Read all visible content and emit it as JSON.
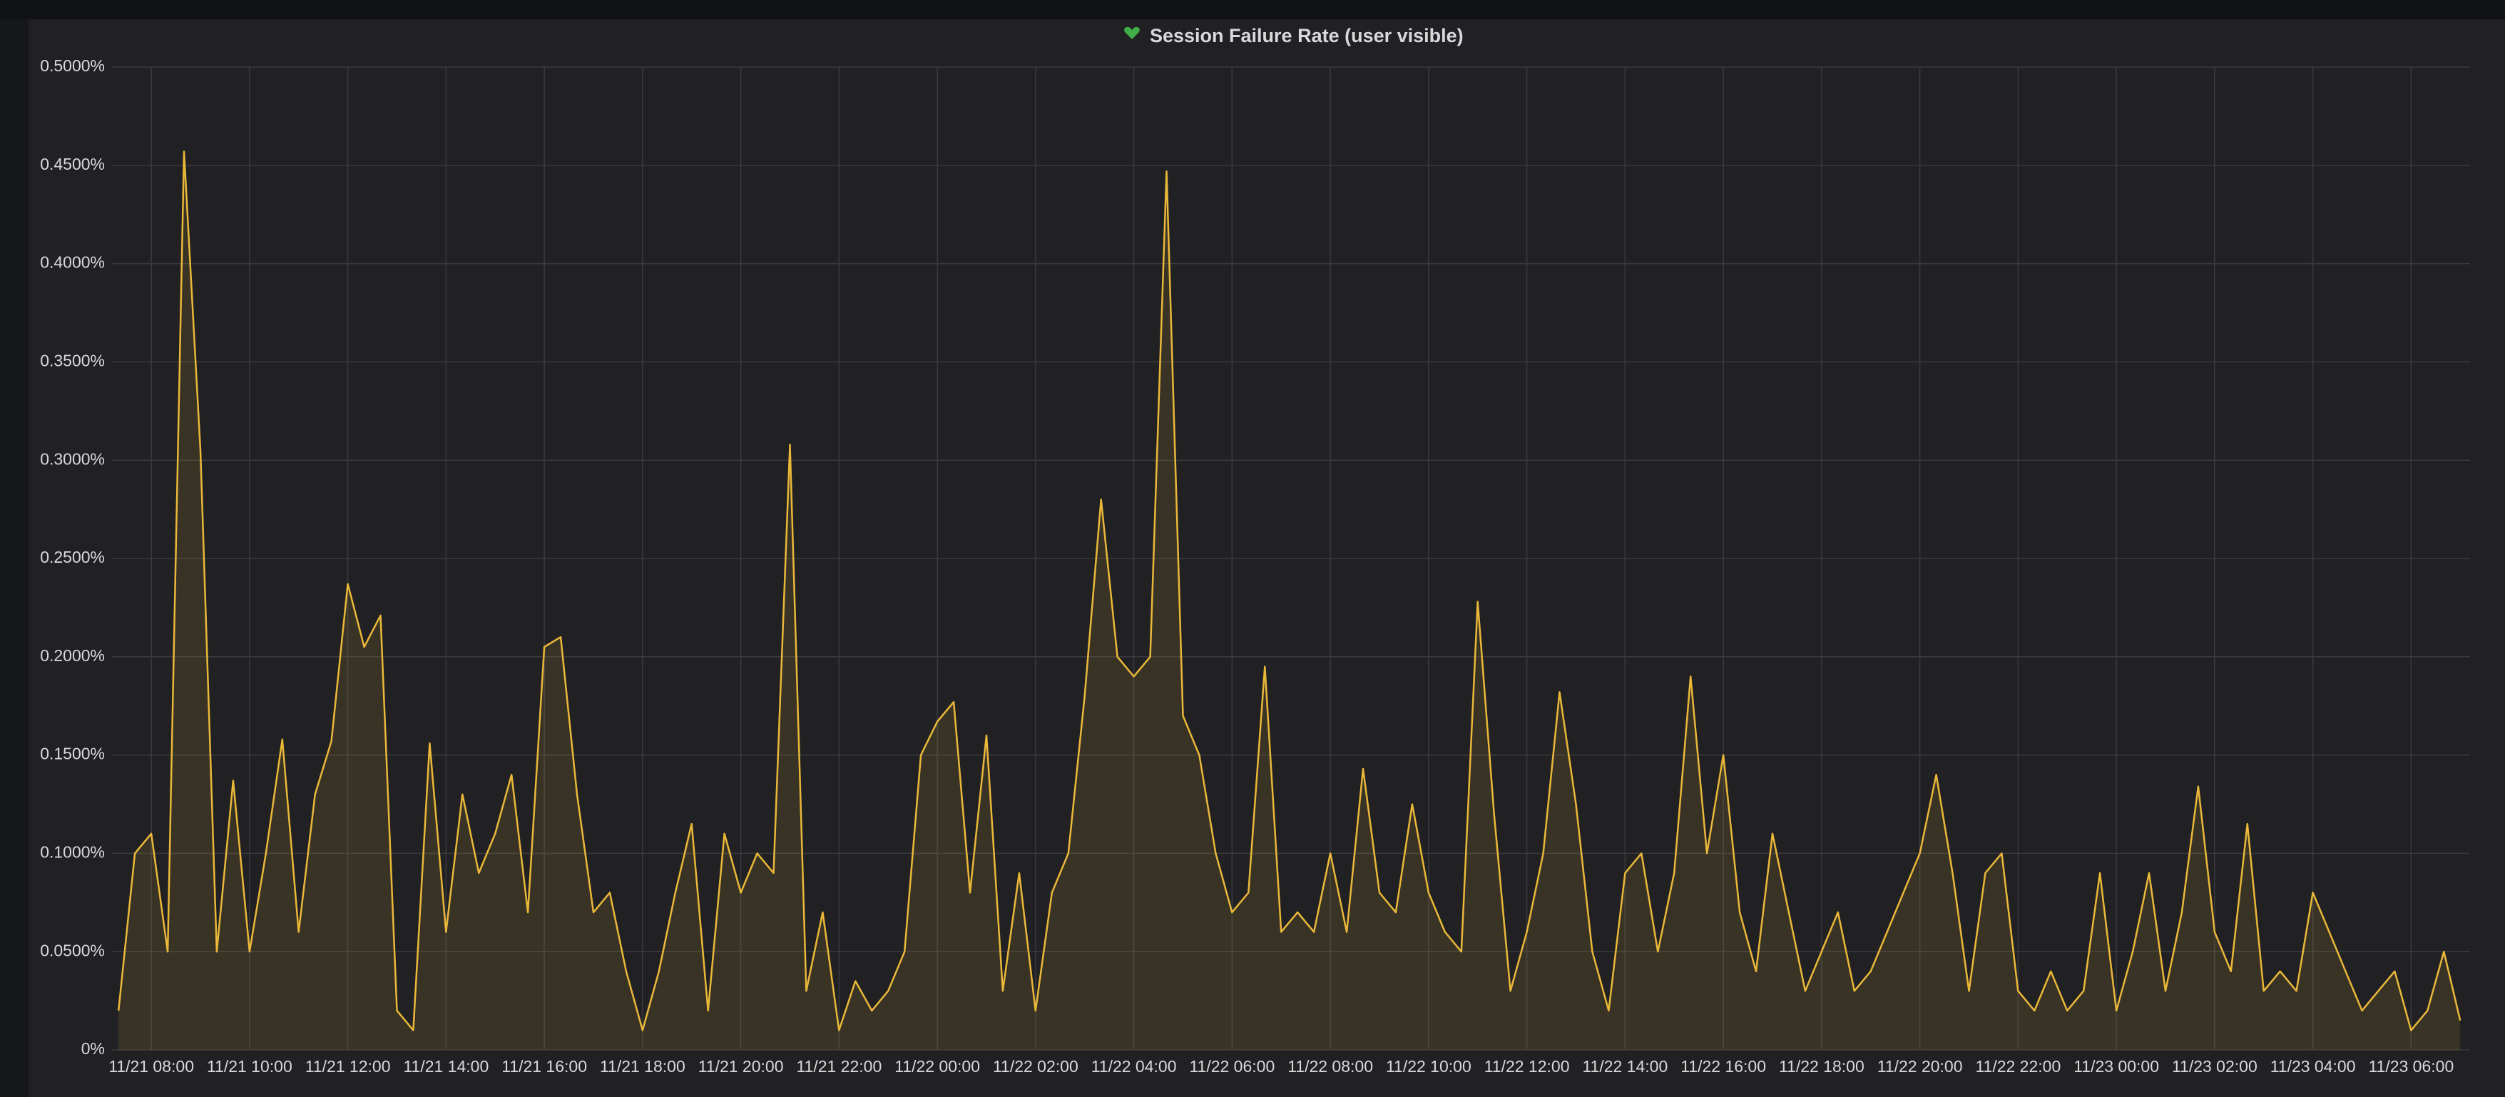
{
  "chart_data": {
    "type": "line",
    "title": "Session Failure Rate (user visible)",
    "x": [
      "11/21 07:20",
      "11/21 07:40",
      "11/21 08:00",
      "11/21 08:20",
      "11/21 08:40",
      "11/21 09:00",
      "11/21 09:20",
      "11/21 09:40",
      "11/21 10:00",
      "11/21 10:20",
      "11/21 10:40",
      "11/21 11:00",
      "11/21 11:20",
      "11/21 11:40",
      "11/21 12:00",
      "11/21 12:20",
      "11/21 12:40",
      "11/21 13:00",
      "11/21 13:20",
      "11/21 13:40",
      "11/21 14:00",
      "11/21 14:20",
      "11/21 14:40",
      "11/21 15:00",
      "11/21 15:20",
      "11/21 15:40",
      "11/21 16:00",
      "11/21 16:20",
      "11/21 16:40",
      "11/21 17:00",
      "11/21 17:20",
      "11/21 17:40",
      "11/21 18:00",
      "11/21 18:20",
      "11/21 18:40",
      "11/21 19:00",
      "11/21 19:20",
      "11/21 19:40",
      "11/21 20:00",
      "11/21 20:20",
      "11/21 20:40",
      "11/21 21:00",
      "11/21 21:20",
      "11/21 21:40",
      "11/21 22:00",
      "11/21 22:20",
      "11/21 22:40",
      "11/21 23:00",
      "11/21 23:20",
      "11/21 23:40",
      "11/22 00:00",
      "11/22 00:20",
      "11/22 00:40",
      "11/22 01:00",
      "11/22 01:20",
      "11/22 01:40",
      "11/22 02:00",
      "11/22 02:20",
      "11/22 02:40",
      "11/22 03:00",
      "11/22 03:20",
      "11/22 03:40",
      "11/22 04:00",
      "11/22 04:20",
      "11/22 04:40",
      "11/22 05:00",
      "11/22 05:20",
      "11/22 05:40",
      "11/22 06:00",
      "11/22 06:20",
      "11/22 06:40",
      "11/22 07:00",
      "11/22 07:20",
      "11/22 07:40",
      "11/22 08:00",
      "11/22 08:20",
      "11/22 08:40",
      "11/22 09:00",
      "11/22 09:20",
      "11/22 09:40",
      "11/22 10:00",
      "11/22 10:20",
      "11/22 10:40",
      "11/22 11:00",
      "11/22 11:20",
      "11/22 11:40",
      "11/22 12:00",
      "11/22 12:20",
      "11/22 12:40",
      "11/22 13:00",
      "11/22 13:20",
      "11/22 13:40",
      "11/22 14:00",
      "11/22 14:20",
      "11/22 14:40",
      "11/22 15:00",
      "11/22 15:20",
      "11/22 15:40",
      "11/22 16:00",
      "11/22 16:20",
      "11/22 16:40",
      "11/22 17:00",
      "11/22 17:20",
      "11/22 17:40",
      "11/22 18:00",
      "11/22 18:20",
      "11/22 18:40",
      "11/22 19:00",
      "11/22 19:20",
      "11/22 19:40",
      "11/22 20:00",
      "11/22 20:20",
      "11/22 20:40",
      "11/22 21:00",
      "11/22 21:20",
      "11/22 21:40",
      "11/22 22:00",
      "11/22 22:20",
      "11/22 22:40",
      "11/22 23:00",
      "11/22 23:20",
      "11/22 23:40",
      "11/23 00:00",
      "11/23 00:20",
      "11/23 00:40",
      "11/23 01:00",
      "11/23 01:20",
      "11/23 01:40",
      "11/23 02:00",
      "11/23 02:20",
      "11/23 02:40",
      "11/23 03:00",
      "11/23 03:20",
      "11/23 03:40",
      "11/23 04:00",
      "11/23 04:20",
      "11/23 04:40",
      "11/23 05:00",
      "11/23 05:20",
      "11/23 05:40",
      "11/23 06:00",
      "11/23 06:20",
      "11/23 06:40",
      "11/23 07:00"
    ],
    "values": [
      0.02,
      0.1,
      0.11,
      0.05,
      0.457,
      0.305,
      0.05,
      0.137,
      0.05,
      0.1,
      0.158,
      0.06,
      0.13,
      0.157,
      0.237,
      0.205,
      0.221,
      0.02,
      0.01,
      0.156,
      0.06,
      0.13,
      0.09,
      0.11,
      0.14,
      0.07,
      0.205,
      0.21,
      0.13,
      0.07,
      0.08,
      0.04,
      0.01,
      0.04,
      0.08,
      0.115,
      0.02,
      0.11,
      0.08,
      0.1,
      0.09,
      0.308,
      0.03,
      0.07,
      0.01,
      0.035,
      0.02,
      0.03,
      0.05,
      0.15,
      0.167,
      0.177,
      0.08,
      0.16,
      0.03,
      0.09,
      0.02,
      0.08,
      0.1,
      0.18,
      0.28,
      0.2,
      0.19,
      0.2,
      0.447,
      0.17,
      0.15,
      0.1,
      0.07,
      0.08,
      0.195,
      0.06,
      0.07,
      0.06,
      0.1,
      0.06,
      0.143,
      0.08,
      0.07,
      0.125,
      0.08,
      0.06,
      0.05,
      0.228,
      0.12,
      0.03,
      0.06,
      0.1,
      0.182,
      0.125,
      0.05,
      0.02,
      0.09,
      0.1,
      0.05,
      0.09,
      0.19,
      0.1,
      0.15,
      0.07,
      0.04,
      0.11,
      0.07,
      0.03,
      0.05,
      0.07,
      0.03,
      0.04,
      0.06,
      0.08,
      0.1,
      0.14,
      0.09,
      0.03,
      0.09,
      0.1,
      0.03,
      0.02,
      0.04,
      0.02,
      0.03,
      0.09,
      0.02,
      0.05,
      0.09,
      0.03,
      0.07,
      0.134,
      0.06,
      0.04,
      0.115,
      0.03,
      0.04,
      0.03,
      0.08,
      0.06,
      0.04,
      0.02,
      0.03,
      0.04,
      0.01,
      0.02,
      0.05,
      0.015
    ],
    "color": "#eab839",
    "xlim": [
      "11/21 07:12",
      "11/23 07:12"
    ],
    "xticks": [
      "11/21 08:00",
      "11/21 10:00",
      "11/21 12:00",
      "11/21 14:00",
      "11/21 16:00",
      "11/21 18:00",
      "11/21 20:00",
      "11/21 22:00",
      "11/22 00:00",
      "11/22 02:00",
      "11/22 04:00",
      "11/22 06:00",
      "11/22 08:00",
      "11/22 10:00",
      "11/22 12:00",
      "11/22 14:00",
      "11/22 16:00",
      "11/22 18:00",
      "11/22 20:00",
      "11/22 22:00",
      "11/23 00:00",
      "11/23 02:00",
      "11/23 04:00",
      "11/23 06:00"
    ],
    "ylim": [
      0,
      0.5
    ],
    "yticks": [
      {
        "value": 0,
        "label": "0%"
      },
      {
        "value": 0.05,
        "label": "0.0500%"
      },
      {
        "value": 0.1,
        "label": "0.1000%"
      },
      {
        "value": 0.15,
        "label": "0.1500%"
      },
      {
        "value": 0.2,
        "label": "0.2000%"
      },
      {
        "value": 0.25,
        "label": "0.2500%"
      },
      {
        "value": 0.3,
        "label": "0.3000%"
      },
      {
        "value": 0.35,
        "label": "0.3500%"
      },
      {
        "value": 0.4,
        "label": "0.4000%"
      },
      {
        "value": 0.45,
        "label": "0.4500%"
      },
      {
        "value": 0.5,
        "label": "0.5000%"
      }
    ],
    "grid": true
  }
}
